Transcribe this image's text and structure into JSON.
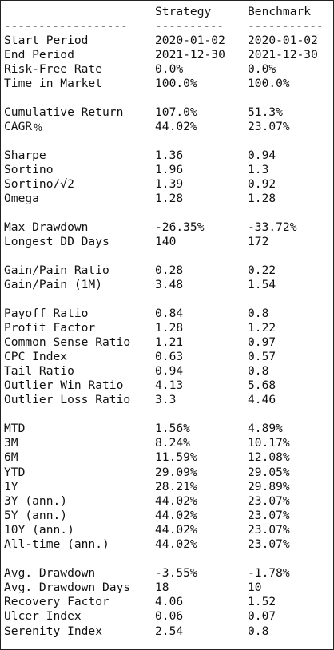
{
  "header": {
    "metric_col": "",
    "strategy_col": "Strategy",
    "benchmark_col": "Benchmark",
    "sep_metric": "------------------",
    "sep_strategy": "----------",
    "sep_benchmark": "-----------"
  },
  "sections": [
    {
      "rows": [
        {
          "label": "Start Period",
          "strategy": "2020-01-02",
          "benchmark": "2020-01-02"
        },
        {
          "label": "End Period",
          "strategy": "2021-12-30",
          "benchmark": "2021-12-30"
        },
        {
          "label": "Risk-Free Rate",
          "strategy": "0.0%",
          "benchmark": "0.0%"
        },
        {
          "label": "Time in Market",
          "strategy": "100.0%",
          "benchmark": "100.0%"
        }
      ]
    },
    {
      "rows": [
        {
          "label": "Cumulative Return",
          "strategy": "107.0%",
          "benchmark": "51.3%"
        },
        {
          "label": "CAGR﹪",
          "strategy": "44.02%",
          "benchmark": "23.07%"
        }
      ]
    },
    {
      "rows": [
        {
          "label": "Sharpe",
          "strategy": "1.36",
          "benchmark": "0.94"
        },
        {
          "label": "Sortino",
          "strategy": "1.96",
          "benchmark": "1.3"
        },
        {
          "label": "Sortino/√2",
          "strategy": "1.39",
          "benchmark": "0.92"
        },
        {
          "label": "Omega",
          "strategy": "1.28",
          "benchmark": "1.28"
        }
      ]
    },
    {
      "rows": [
        {
          "label": "Max Drawdown",
          "strategy": "-26.35%",
          "benchmark": "-33.72%"
        },
        {
          "label": "Longest DD Days",
          "strategy": "140",
          "benchmark": "172"
        }
      ]
    },
    {
      "rows": [
        {
          "label": "Gain/Pain Ratio",
          "strategy": "0.28",
          "benchmark": "0.22"
        },
        {
          "label": "Gain/Pain (1M)",
          "strategy": "3.48",
          "benchmark": "1.54"
        }
      ]
    },
    {
      "rows": [
        {
          "label": "Payoff Ratio",
          "strategy": "0.84",
          "benchmark": "0.8"
        },
        {
          "label": "Profit Factor",
          "strategy": "1.28",
          "benchmark": "1.22"
        },
        {
          "label": "Common Sense Ratio",
          "strategy": "1.21",
          "benchmark": "0.97"
        },
        {
          "label": "CPC Index",
          "strategy": "0.63",
          "benchmark": "0.57"
        },
        {
          "label": "Tail Ratio",
          "strategy": "0.94",
          "benchmark": "0.8"
        },
        {
          "label": "Outlier Win Ratio",
          "strategy": "4.13",
          "benchmark": "5.68"
        },
        {
          "label": "Outlier Loss Ratio",
          "strategy": "3.3",
          "benchmark": "4.46"
        }
      ]
    },
    {
      "rows": [
        {
          "label": "MTD",
          "strategy": "1.56%",
          "benchmark": "4.89%"
        },
        {
          "label": "3M",
          "strategy": "8.24%",
          "benchmark": "10.17%"
        },
        {
          "label": "6M",
          "strategy": "11.59%",
          "benchmark": "12.08%"
        },
        {
          "label": "YTD",
          "strategy": "29.09%",
          "benchmark": "29.05%"
        },
        {
          "label": "1Y",
          "strategy": "28.21%",
          "benchmark": "29.89%"
        },
        {
          "label": "3Y (ann.)",
          "strategy": "44.02%",
          "benchmark": "23.07%"
        },
        {
          "label": "5Y (ann.)",
          "strategy": "44.02%",
          "benchmark": "23.07%"
        },
        {
          "label": "10Y (ann.)",
          "strategy": "44.02%",
          "benchmark": "23.07%"
        },
        {
          "label": "All-time (ann.)",
          "strategy": "44.02%",
          "benchmark": "23.07%"
        }
      ]
    },
    {
      "rows": [
        {
          "label": "Avg. Drawdown",
          "strategy": "-3.55%",
          "benchmark": "-1.78%"
        },
        {
          "label": "Avg. Drawdown Days",
          "strategy": "18",
          "benchmark": "10"
        },
        {
          "label": "Recovery Factor",
          "strategy": "4.06",
          "benchmark": "1.52"
        },
        {
          "label": "Ulcer Index",
          "strategy": "0.06",
          "benchmark": "0.07"
        },
        {
          "label": "Serenity Index",
          "strategy": "2.54",
          "benchmark": "0.8"
        }
      ]
    }
  ]
}
